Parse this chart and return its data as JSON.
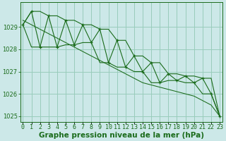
{
  "title": "Graphe pression niveau de la mer (hPa)",
  "x": [
    0,
    1,
    2,
    3,
    4,
    5,
    6,
    7,
    8,
    9,
    10,
    11,
    12,
    13,
    14,
    15,
    16,
    17,
    18,
    19,
    20,
    21,
    22,
    23
  ],
  "y_main": [
    1029.1,
    1029.7,
    1028.1,
    1029.5,
    1028.1,
    1029.3,
    1028.2,
    1029.1,
    1028.3,
    1028.9,
    1027.4,
    1028.4,
    1027.2,
    1027.7,
    1027.0,
    1027.4,
    1026.5,
    1026.9,
    1026.6,
    1026.8,
    1026.5,
    1026.7,
    1026.0,
    1025.0
  ],
  "y_peak_envelope": [
    1029.1,
    1029.7,
    1029.7,
    1029.5,
    1029.5,
    1029.3,
    1029.3,
    1029.1,
    1029.1,
    1028.9,
    1028.9,
    1028.4,
    1028.4,
    1027.7,
    1027.7,
    1027.4,
    1027.4,
    1026.9,
    1026.9,
    1026.8,
    1026.8,
    1026.7,
    1026.7,
    1025.0
  ],
  "y_valley_envelope": [
    1029.1,
    1028.1,
    1028.1,
    1028.1,
    1028.1,
    1028.2,
    1028.2,
    1028.3,
    1028.3,
    1027.4,
    1027.4,
    1027.2,
    1027.2,
    1027.0,
    1027.0,
    1026.5,
    1026.5,
    1026.6,
    1026.6,
    1026.5,
    1026.5,
    1026.0,
    1026.0,
    1025.0
  ],
  "trend": [
    1029.3,
    1029.1,
    1028.9,
    1028.7,
    1028.5,
    1028.3,
    1028.1,
    1027.9,
    1027.7,
    1027.5,
    1027.3,
    1027.1,
    1026.9,
    1026.7,
    1026.5,
    1026.4,
    1026.3,
    1026.2,
    1026.1,
    1026.0,
    1025.9,
    1025.7,
    1025.5,
    1025.0
  ],
  "line_color": "#1a6b1a",
  "bg_color": "#cce8e8",
  "grid_color": "#99ccbb",
  "ylim_min": 1024.75,
  "ylim_max": 1030.1,
  "yticks": [
    1025,
    1026,
    1027,
    1028,
    1029
  ],
  "tick_fontsize": 6.0,
  "title_fontsize": 7.5
}
